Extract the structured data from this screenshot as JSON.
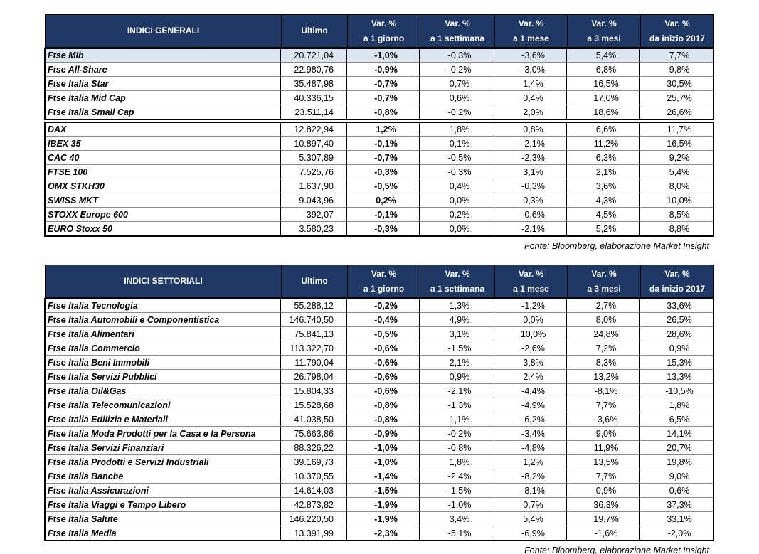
{
  "tables": [
    {
      "headers": [
        {
          "lines": [
            "INDICI GENERALI"
          ]
        },
        {
          "lines": [
            "Ultimo"
          ]
        },
        {
          "lines": [
            "Var. %",
            "a 1 giorno"
          ]
        },
        {
          "lines": [
            "Var. %",
            "a 1 settimana"
          ]
        },
        {
          "lines": [
            "Var. %",
            "a 1 mese"
          ]
        },
        {
          "lines": [
            "Var. %",
            "a 3 mesi"
          ]
        },
        {
          "lines": [
            "Var. %",
            "da inizio 2017"
          ]
        }
      ],
      "groups": [
        [
          [
            "Ftse Mib",
            "20.721,04",
            "-1,0%",
            "-0,3%",
            "-3,6%",
            "5,4%",
            "7,7%"
          ],
          [
            "Ftse All-Share",
            "22.980,76",
            "-0,9%",
            "-0,2%",
            "-3,0%",
            "6,8%",
            "9,8%"
          ],
          [
            "Ftse Italia Star",
            "35.487,98",
            "-0,7%",
            "0,7%",
            "1,4%",
            "16,5%",
            "30,5%"
          ],
          [
            "Ftse Italia Mid Cap",
            "40.336,15",
            "-0,7%",
            "0,6%",
            "0,4%",
            "17,0%",
            "25,7%"
          ],
          [
            "Ftse Italia Small Cap",
            "23.511,14",
            "-0,8%",
            "-0,2%",
            "2,0%",
            "18,6%",
            "26,6%"
          ]
        ],
        [
          [
            "DAX",
            "12.822,94",
            "1,2%",
            "1,8%",
            "0,8%",
            "6,6%",
            "11,7%"
          ],
          [
            "IBEX 35",
            "10.897,40",
            "-0,1%",
            "0,1%",
            "-2,1%",
            "11,2%",
            "16,5%"
          ],
          [
            "CAC 40",
            "5.307,89",
            "-0,7%",
            "-0,5%",
            "-2,3%",
            "6,3%",
            "9,2%"
          ],
          [
            "FTSE 100",
            "7.525,76",
            "-0,3%",
            "-0,3%",
            "3,1%",
            "2,1%",
            "5,4%"
          ],
          [
            "OMX STKH30",
            "1.637,90",
            "-0,5%",
            "0,4%",
            "-0,3%",
            "3,6%",
            "8,0%"
          ],
          [
            "SWISS MKT",
            "9.043,96",
            "0,2%",
            "0,0%",
            "0,3%",
            "4,3%",
            "10,0%"
          ],
          [
            "STOXX Europe 600",
            "392,07",
            "-0,1%",
            "0,2%",
            "-0,6%",
            "4,5%",
            "8,5%"
          ],
          [
            "EURO Stoxx 50",
            "3.580,23",
            "-0,3%",
            "0,0%",
            "-2,1%",
            "5,2%",
            "8,8%"
          ]
        ]
      ],
      "source": "Fonte: Bloomberg, elaborazione Market Insight"
    },
    {
      "headers": [
        {
          "lines": [
            "INDICI SETTORIALI"
          ]
        },
        {
          "lines": [
            "Ultimo"
          ]
        },
        {
          "lines": [
            "Var. %",
            "a 1 giorno"
          ]
        },
        {
          "lines": [
            "Var. %",
            "a 1 settimana"
          ]
        },
        {
          "lines": [
            "Var. %",
            "a 1 mese"
          ]
        },
        {
          "lines": [
            "Var. %",
            "a 3 mesi"
          ]
        },
        {
          "lines": [
            "Var. %",
            "da inizio 2017"
          ]
        }
      ],
      "groups": [
        [
          [
            "Ftse Italia Tecnologia",
            "55.288,12",
            "-0,2%",
            "1,3%",
            "-1,2%",
            "2,7%",
            "33,6%"
          ],
          [
            "Ftse Italia Automobili e Componentistica",
            "146.740,50",
            "-0,4%",
            "4,9%",
            "0,0%",
            "8,0%",
            "26,5%"
          ],
          [
            "Ftse Italia Alimentari",
            "75.841,13",
            "-0,5%",
            "3,1%",
            "10,0%",
            "24,8%",
            "28,6%"
          ],
          [
            "Ftse Italia Commercio",
            "113.322,70",
            "-0,6%",
            "-1,5%",
            "-2,6%",
            "7,2%",
            "0,9%"
          ],
          [
            "Ftse Italia Beni Immobili",
            "11.790,04",
            "-0,6%",
            "2,1%",
            "3,8%",
            "8,3%",
            "15,3%"
          ],
          [
            "Ftse Italia Servizi Pubblici",
            "26.798,04",
            "-0,6%",
            "0,9%",
            "2,4%",
            "13,2%",
            "13,3%"
          ],
          [
            "Ftse Italia Oil&Gas",
            "15.804,33",
            "-0,6%",
            "-2,1%",
            "-4,4%",
            "-8,1%",
            "-10,5%"
          ],
          [
            "Ftse Italia Telecomunicazioni",
            "15.528,68",
            "-0,8%",
            "-1,3%",
            "-4,9%",
            "7,7%",
            "1,8%"
          ],
          [
            "Ftse Italia Edilizia e Materiali",
            "41.038,50",
            "-0,8%",
            "1,1%",
            "-6,2%",
            "-3,6%",
            "6,5%"
          ],
          [
            "Ftse Italia Moda Prodotti per la Casa e la Persona",
            "75.663,86",
            "-0,9%",
            "-0,2%",
            "-3,4%",
            "9,0%",
            "14,1%"
          ],
          [
            "Ftse Italia Servizi Finanziari",
            "88.326,22",
            "-1,0%",
            "-0,8%",
            "-4,8%",
            "11,9%",
            "20,7%"
          ],
          [
            "Ftse Italia Prodotti e Servizi Industriali",
            "39.169,73",
            "-1,0%",
            "1,8%",
            "1,2%",
            "13,5%",
            "19,8%"
          ],
          [
            "Ftse Italia Banche",
            "10.370,55",
            "-1,4%",
            "-2,4%",
            "-8,2%",
            "7,7%",
            "9,0%"
          ],
          [
            "Ftse Italia Assicurazioni",
            "14.614,03",
            "-1,5%",
            "-1,5%",
            "-8,1%",
            "0,9%",
            "0,6%"
          ],
          [
            "Ftse Italia Viaggi e Tempo Libero",
            "42.873,82",
            "-1,9%",
            "-1,0%",
            "0,7%",
            "36,3%",
            "37,3%"
          ],
          [
            "Ftse Italia Salute",
            "146.220,50",
            "-1,9%",
            "3,4%",
            "5,4%",
            "19,7%",
            "33,1%"
          ],
          [
            "Ftse Italia Media",
            "13.391,99",
            "-2,3%",
            "-5,1%",
            "-6,9%",
            "-1,6%",
            "-2,0%"
          ]
        ]
      ],
      "source": "Fonte: Bloomberg, elaborazione Market Insight"
    }
  ]
}
